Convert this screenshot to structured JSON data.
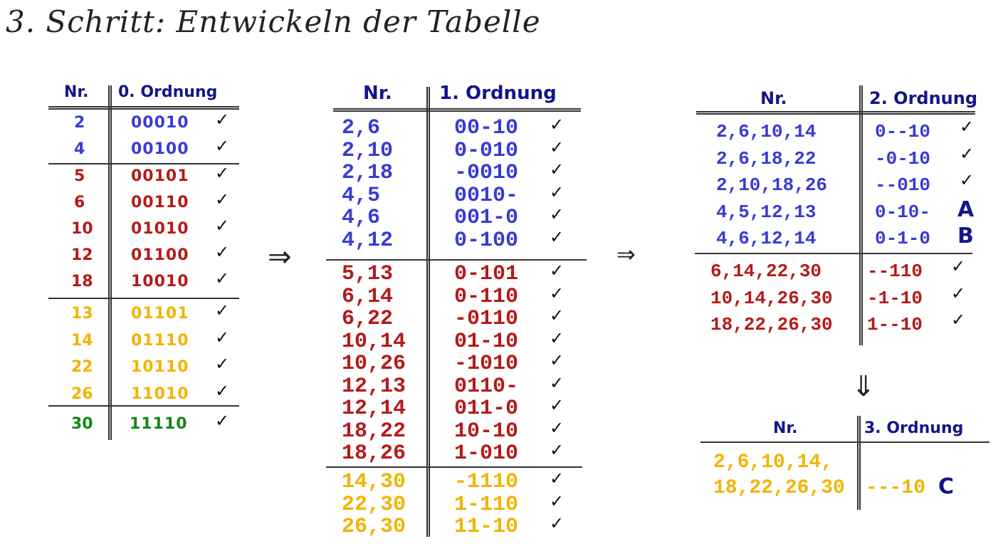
{
  "title": "3. Schritt: Entwickeln der Tabelle",
  "colors": {
    "blue": "#3a3ad6",
    "red": "#b51a1a",
    "yellow": "#f2b400",
    "green": "#118a11",
    "header": "#15158a"
  },
  "table0": {
    "header_nr": "Nr.",
    "header_col": "0. Ordnung",
    "rows": [
      {
        "nr": "2",
        "code": "00010",
        "color": "blue"
      },
      {
        "nr": "4",
        "code": "00100",
        "color": "blue"
      },
      {
        "nr": "5",
        "code": "00101",
        "color": "red"
      },
      {
        "nr": "6",
        "code": "00110",
        "color": "red"
      },
      {
        "nr": "10",
        "code": "01010",
        "color": "red"
      },
      {
        "nr": "12",
        "code": "01100",
        "color": "red"
      },
      {
        "nr": "18",
        "code": "10010",
        "color": "red"
      },
      {
        "nr": "13",
        "code": "01101",
        "color": "yellow"
      },
      {
        "nr": "14",
        "code": "01110",
        "color": "yellow"
      },
      {
        "nr": "22",
        "code": "10110",
        "color": "yellow"
      },
      {
        "nr": "26",
        "code": "11010",
        "color": "yellow"
      },
      {
        "nr": "30",
        "code": "11110",
        "color": "green"
      }
    ]
  },
  "table1": {
    "header_nr": "Nr.",
    "header_col": "1. Ordnung",
    "rows": [
      {
        "nr": "2,6",
        "code": "00-10",
        "color": "blue"
      },
      {
        "nr": "2,10",
        "code": "0-010",
        "color": "blue"
      },
      {
        "nr": "2,18",
        "code": "-0010",
        "color": "blue"
      },
      {
        "nr": "4,5",
        "code": "0010-",
        "color": "blue"
      },
      {
        "nr": "4,6",
        "code": "001-0",
        "color": "blue"
      },
      {
        "nr": "4,12",
        "code": "0-100",
        "color": "blue"
      },
      {
        "nr": "5,13",
        "code": "0-101",
        "color": "red"
      },
      {
        "nr": "6,14",
        "code": "0-110",
        "color": "red"
      },
      {
        "nr": "6,22",
        "code": "-0110",
        "color": "red"
      },
      {
        "nr": "10,14",
        "code": "01-10",
        "color": "red"
      },
      {
        "nr": "10,26",
        "code": "-1010",
        "color": "red"
      },
      {
        "nr": "12,13",
        "code": "0110-",
        "color": "red"
      },
      {
        "nr": "12,14",
        "code": "011-0",
        "color": "red"
      },
      {
        "nr": "18,22",
        "code": "10-10",
        "color": "red"
      },
      {
        "nr": "18,26",
        "code": "1-010",
        "color": "red"
      },
      {
        "nr": "14,30",
        "code": "-1110",
        "color": "yellow"
      },
      {
        "nr": "22,30",
        "code": "1-110",
        "color": "yellow"
      },
      {
        "nr": "26,30",
        "code": "11-10",
        "color": "yellow"
      }
    ]
  },
  "table2": {
    "header_nr": "Nr.",
    "header_col": "2. Ordnung",
    "rows": [
      {
        "nr": "2,6,10,14",
        "code": "0--10",
        "color": "blue",
        "mark": "✓"
      },
      {
        "nr": "2,6,18,22",
        "code": "-0-10",
        "color": "blue",
        "mark": "✓"
      },
      {
        "nr": "2,10,18,26",
        "code": "--010",
        "color": "blue",
        "mark": "✓"
      },
      {
        "nr": "4,5,12,13",
        "code": "0-10-",
        "color": "blue",
        "mark": "A"
      },
      {
        "nr": "4,6,12,14",
        "code": "0-1-0",
        "color": "blue",
        "mark": "B"
      },
      {
        "nr": "6,14,22,30",
        "code": "--110",
        "color": "red",
        "mark": "✓"
      },
      {
        "nr": "10,14,26,30",
        "code": "-1-10",
        "color": "red",
        "mark": "✓"
      },
      {
        "nr": "18,22,26,30",
        "code": "1--10",
        "color": "red",
        "mark": "✓"
      }
    ]
  },
  "table3": {
    "header_nr": "Nr.",
    "header_col": "3. Ordnung",
    "nr_line1": "2,6,10,14,",
    "nr_line2": "18,22,26,30",
    "code": "---10",
    "mark": "C"
  },
  "arrows": {
    "right1": "⇒",
    "right2": "⇒",
    "down": "⇓"
  },
  "check": "✓"
}
